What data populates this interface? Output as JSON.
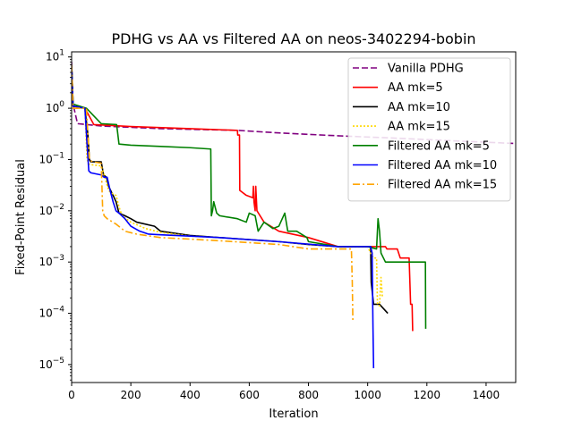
{
  "chart_data": {
    "type": "line",
    "title": "PDHG vs AA vs Filtered AA on neos-3402294-bobin",
    "xlabel": "Iteration",
    "ylabel": "Fixed-Point Residual",
    "xlim": [
      0,
      1500
    ],
    "ylim_log10": [
      -5.35,
      1.1
    ],
    "yscale": "log",
    "legend_position": "top-right",
    "x_ticks": [
      {
        "value": 0,
        "label": "0"
      },
      {
        "value": 200,
        "label": "200"
      },
      {
        "value": 400,
        "label": "400"
      },
      {
        "value": 600,
        "label": "600"
      },
      {
        "value": 800,
        "label": "800"
      },
      {
        "value": 1000,
        "label": "1000"
      },
      {
        "value": 1200,
        "label": "1200"
      },
      {
        "value": 1400,
        "label": "1400"
      }
    ],
    "y_ticks": [
      {
        "exp": 1,
        "base": "10",
        "power": "1"
      },
      {
        "exp": 0,
        "base": "10",
        "power": "0"
      },
      {
        "exp": -1,
        "base": "10",
        "power": "−1"
      },
      {
        "exp": -2,
        "base": "10",
        "power": "−2"
      },
      {
        "exp": -3,
        "base": "10",
        "power": "−3"
      },
      {
        "exp": -4,
        "base": "10",
        "power": "−4"
      },
      {
        "exp": -5,
        "base": "10",
        "power": "−5"
      }
    ],
    "series": [
      {
        "name": "Vanilla PDHG",
        "color": "#800080",
        "dash": "7,3",
        "points": [
          [
            0,
            8
          ],
          [
            3,
            1.2
          ],
          [
            8,
            1.0
          ],
          [
            20,
            0.5
          ],
          [
            100,
            0.45
          ],
          [
            300,
            0.4
          ],
          [
            560,
            0.37
          ],
          [
            700,
            0.33
          ],
          [
            900,
            0.29
          ],
          [
            1100,
            0.26
          ],
          [
            1300,
            0.23
          ],
          [
            1500,
            0.205
          ]
        ]
      },
      {
        "name": "AA mk=5",
        "color": "#ff0000",
        "dash": "",
        "points": [
          [
            0,
            7
          ],
          [
            5,
            1.1
          ],
          [
            45,
            1.0
          ],
          [
            75,
            0.48
          ],
          [
            200,
            0.44
          ],
          [
            400,
            0.4
          ],
          [
            560,
            0.37
          ],
          [
            561,
            0.3
          ],
          [
            567,
            0.3
          ],
          [
            568,
            0.025
          ],
          [
            590,
            0.02
          ],
          [
            612,
            0.018
          ],
          [
            614,
            0.03
          ],
          [
            616,
            0.015
          ],
          [
            620,
            0.01
          ],
          [
            622,
            0.03
          ],
          [
            626,
            0.01
          ],
          [
            650,
            0.006
          ],
          [
            700,
            0.004
          ],
          [
            800,
            0.003
          ],
          [
            900,
            0.002
          ],
          [
            1060,
            0.002
          ],
          [
            1065,
            0.0018
          ],
          [
            1100,
            0.0018
          ],
          [
            1110,
            0.0012
          ],
          [
            1140,
            0.0012
          ],
          [
            1145,
            0.00015
          ],
          [
            1150,
            0.00015
          ],
          [
            1152,
            4.5e-05
          ]
        ]
      },
      {
        "name": "AA mk=10",
        "color": "#000000",
        "dash": "",
        "points": [
          [
            0,
            7
          ],
          [
            5,
            1.1
          ],
          [
            45,
            1.0
          ],
          [
            55,
            0.3
          ],
          [
            60,
            0.1
          ],
          [
            65,
            0.09
          ],
          [
            100,
            0.09
          ],
          [
            108,
            0.05
          ],
          [
            118,
            0.045
          ],
          [
            125,
            0.03
          ],
          [
            140,
            0.02
          ],
          [
            150,
            0.015
          ],
          [
            160,
            0.009
          ],
          [
            180,
            0.008
          ],
          [
            200,
            0.007
          ],
          [
            220,
            0.006
          ],
          [
            280,
            0.005
          ],
          [
            300,
            0.004
          ],
          [
            400,
            0.0033
          ],
          [
            500,
            0.003
          ],
          [
            700,
            0.0025
          ],
          [
            800,
            0.0022
          ],
          [
            900,
            0.002
          ],
          [
            1010,
            0.002
          ],
          [
            1012,
            0.0004
          ],
          [
            1020,
            0.00015
          ],
          [
            1040,
            0.00015
          ],
          [
            1050,
            0.00013
          ],
          [
            1068,
            0.0001
          ]
        ]
      },
      {
        "name": "AA mk=15",
        "color": "#ffd700",
        "dash": "2,2",
        "points": [
          [
            0,
            6
          ],
          [
            5,
            1.0
          ],
          [
            45,
            1.0
          ],
          [
            52,
            0.1
          ],
          [
            60,
            0.08
          ],
          [
            100,
            0.075
          ],
          [
            110,
            0.05
          ],
          [
            125,
            0.025
          ],
          [
            135,
            0.022
          ],
          [
            150,
            0.02
          ],
          [
            160,
            0.012
          ],
          [
            170,
            0.008
          ],
          [
            200,
            0.006
          ],
          [
            250,
            0.0045
          ],
          [
            300,
            0.0038
          ],
          [
            400,
            0.0032
          ],
          [
            500,
            0.003
          ],
          [
            700,
            0.0025
          ],
          [
            900,
            0.002
          ],
          [
            1000,
            0.002
          ],
          [
            1010,
            0.0015
          ],
          [
            1020,
            0.0012
          ],
          [
            1030,
            0.0012
          ],
          [
            1033,
            0.00015
          ],
          [
            1040,
            0.00014
          ],
          [
            1045,
            0.0005
          ],
          [
            1050,
            0.0002
          ]
        ]
      },
      {
        "name": "Filtered AA mk=5",
        "color": "#008000",
        "dash": "",
        "points": [
          [
            0,
            7
          ],
          [
            5,
            1.2
          ],
          [
            50,
            1.0
          ],
          [
            100,
            0.5
          ],
          [
            152,
            0.48
          ],
          [
            155,
            0.35
          ],
          [
            160,
            0.2
          ],
          [
            200,
            0.19
          ],
          [
            300,
            0.18
          ],
          [
            400,
            0.17
          ],
          [
            470,
            0.16
          ],
          [
            472,
            0.008
          ],
          [
            476,
            0.01
          ],
          [
            480,
            0.015
          ],
          [
            490,
            0.009
          ],
          [
            500,
            0.008
          ],
          [
            560,
            0.007
          ],
          [
            590,
            0.006
          ],
          [
            600,
            0.009
          ],
          [
            620,
            0.008
          ],
          [
            630,
            0.004
          ],
          [
            650,
            0.006
          ],
          [
            680,
            0.0045
          ],
          [
            700,
            0.005
          ],
          [
            720,
            0.009
          ],
          [
            730,
            0.004
          ],
          [
            760,
            0.004
          ],
          [
            795,
            0.003
          ],
          [
            800,
            0.0025
          ],
          [
            900,
            0.002
          ],
          [
            1000,
            0.002
          ],
          [
            1030,
            0.0018
          ],
          [
            1035,
            0.007
          ],
          [
            1040,
            0.004
          ],
          [
            1045,
            0.0015
          ],
          [
            1060,
            0.001
          ],
          [
            1100,
            0.001
          ],
          [
            1195,
            0.001
          ],
          [
            1196,
            5e-05
          ]
        ]
      },
      {
        "name": "Filtered AA mk=10",
        "color": "#0000ff",
        "dash": "",
        "points": [
          [
            0,
            7
          ],
          [
            5,
            1.1
          ],
          [
            45,
            1.0
          ],
          [
            52,
            0.2
          ],
          [
            58,
            0.06
          ],
          [
            65,
            0.055
          ],
          [
            100,
            0.05
          ],
          [
            110,
            0.045
          ],
          [
            120,
            0.045
          ],
          [
            130,
            0.025
          ],
          [
            140,
            0.015
          ],
          [
            150,
            0.01
          ],
          [
            160,
            0.009
          ],
          [
            180,
            0.007
          ],
          [
            200,
            0.005
          ],
          [
            230,
            0.004
          ],
          [
            260,
            0.0035
          ],
          [
            300,
            0.0034
          ],
          [
            400,
            0.0032
          ],
          [
            500,
            0.003
          ],
          [
            700,
            0.0025
          ],
          [
            900,
            0.002
          ],
          [
            1010,
            0.002
          ],
          [
            1015,
            0.0015
          ],
          [
            1018,
            5e-05
          ],
          [
            1020,
            8.5e-06
          ]
        ]
      },
      {
        "name": "Filtered AA mk=15",
        "color": "#ffa500",
        "dash": "8,3,2,3",
        "points": [
          [
            0,
            7
          ],
          [
            5,
            1.0
          ],
          [
            50,
            1.0
          ],
          [
            55,
            0.3
          ],
          [
            60,
            0.1
          ],
          [
            70,
            0.09
          ],
          [
            100,
            0.085
          ],
          [
            105,
            0.01
          ],
          [
            110,
            0.008
          ],
          [
            120,
            0.007
          ],
          [
            150,
            0.0055
          ],
          [
            180,
            0.004
          ],
          [
            220,
            0.0035
          ],
          [
            300,
            0.003
          ],
          [
            400,
            0.0028
          ],
          [
            500,
            0.0026
          ],
          [
            700,
            0.0022
          ],
          [
            800,
            0.0018
          ],
          [
            900,
            0.0018
          ],
          [
            945,
            0.0018
          ],
          [
            948,
            0.0004
          ],
          [
            950,
            7e-05
          ]
        ]
      }
    ]
  }
}
